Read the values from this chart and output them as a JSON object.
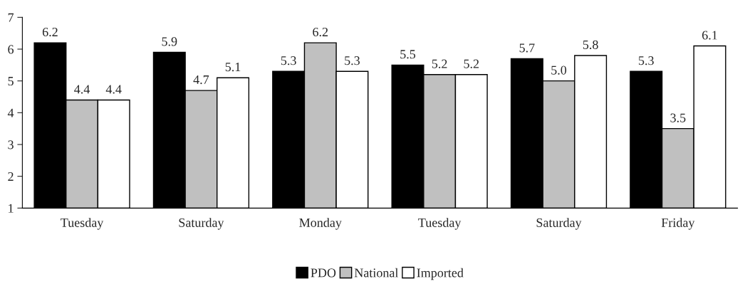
{
  "chart_data": {
    "type": "bar",
    "categories": [
      "Tuesday",
      "Saturday",
      "Monday",
      "Tuesday",
      "Saturday",
      "Friday"
    ],
    "series": [
      {
        "name": "PDO",
        "color": "#000000",
        "values": [
          6.2,
          5.9,
          5.3,
          5.5,
          5.7,
          5.3
        ],
        "value_labels": [
          "6.2",
          "5.9",
          "5.3",
          "5.5",
          "5.7",
          "5.3"
        ]
      },
      {
        "name": "National",
        "color": "#c0c0c0",
        "values": [
          4.4,
          4.7,
          6.2,
          5.2,
          5.0,
          3.5
        ],
        "value_labels": [
          "4.4",
          "4.7",
          "6.2",
          "5.2",
          "5.0",
          "3.5"
        ]
      },
      {
        "name": "Imported",
        "color": "#ffffff",
        "values": [
          4.4,
          5.1,
          5.3,
          5.2,
          5.8,
          6.1
        ],
        "value_labels": [
          "4.4",
          "5.1",
          "5.3",
          "5.2",
          "5.8",
          "6.1"
        ]
      }
    ],
    "ylim": [
      1,
      7
    ],
    "yticks": [
      1,
      2,
      3,
      4,
      5,
      6,
      7
    ],
    "grid": false,
    "legend": "bottom"
  }
}
